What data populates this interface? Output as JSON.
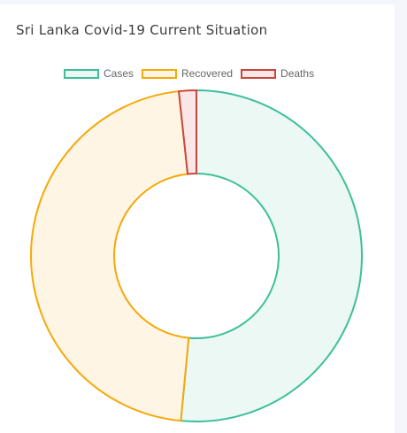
{
  "header": {
    "title": "Sri Lanka Covid-19 Current Situation"
  },
  "colors": {
    "cases": {
      "border": "#3dbf9a",
      "fill": "#ebf8f3"
    },
    "recovered": {
      "border": "#f5a80a",
      "fill": "#fff5e5"
    },
    "deaths": {
      "border": "#c9473c",
      "fill": "#f9e7e7"
    },
    "background": "#ffffff"
  },
  "legend": {
    "items": [
      {
        "label": "Cases"
      },
      {
        "label": "Recovered"
      },
      {
        "label": "Deaths"
      }
    ]
  },
  "chart_data": {
    "type": "doughnut",
    "categories": [
      "Cases",
      "Recovered",
      "Deaths"
    ],
    "values": [
      51.5,
      46.8,
      1.7
    ],
    "legend_position": "top"
  }
}
